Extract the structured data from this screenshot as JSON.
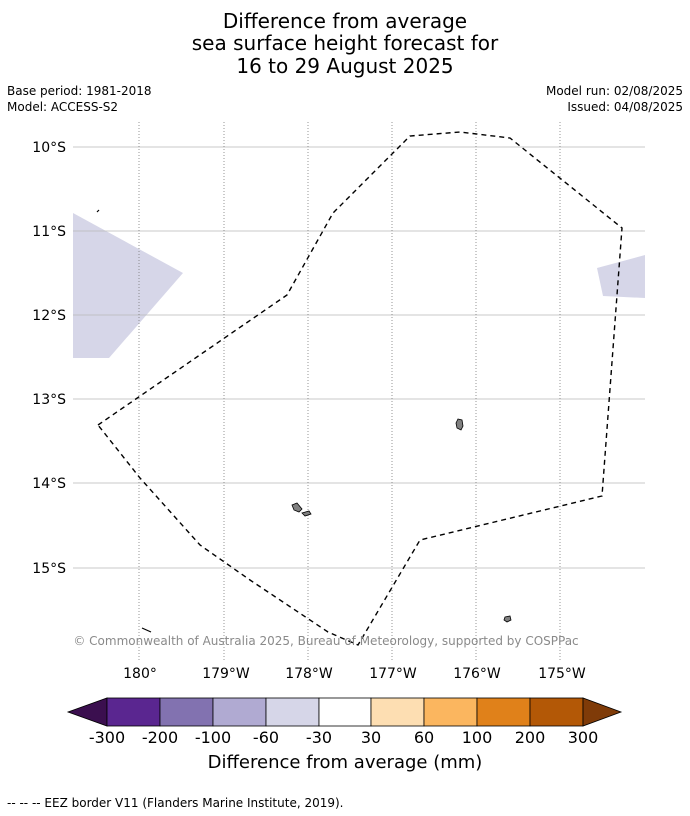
{
  "title": {
    "line1": "Difference from average",
    "line2": "sea surface height forecast for",
    "line3": "16 to 29 August 2025"
  },
  "meta": {
    "base_period": "Base period: 1981-2018",
    "model": "Model: ACCESS-S2",
    "model_run": "Model run: 02/08/2025",
    "issued": "Issued: 04/08/2025"
  },
  "map": {
    "lat_labels": [
      "10°S",
      "11°S",
      "12°S",
      "13°S",
      "14°S",
      "15°S"
    ],
    "lon_labels": [
      "180°",
      "179°W",
      "178°W",
      "177°W",
      "176°W",
      "175°W"
    ],
    "copyright": "© Commonwealth of Australia 2025, Bureau of Meteorology, supported by COSPPac",
    "anomaly_fill_color": "#d6d6e8",
    "land_color": "#808080",
    "eez_line": "dashed black"
  },
  "colorbar": {
    "title": "Difference from average (mm)",
    "tick_labels": [
      "-300",
      "-200",
      "-100",
      "-60",
      "-30",
      "30",
      "60",
      "100",
      "200",
      "300"
    ],
    "colors": [
      "#3b0f4f",
      "#5a2690",
      "#8272b0",
      "#b0aad2",
      "#d6d6e8",
      "#ffffff",
      "#fddeb2",
      "#fbb65f",
      "#e0811a",
      "#b35806",
      "#7f3b08"
    ]
  },
  "footer": "--  --  -- EEZ border V11 (Flanders Marine Institute, 2019)."
}
